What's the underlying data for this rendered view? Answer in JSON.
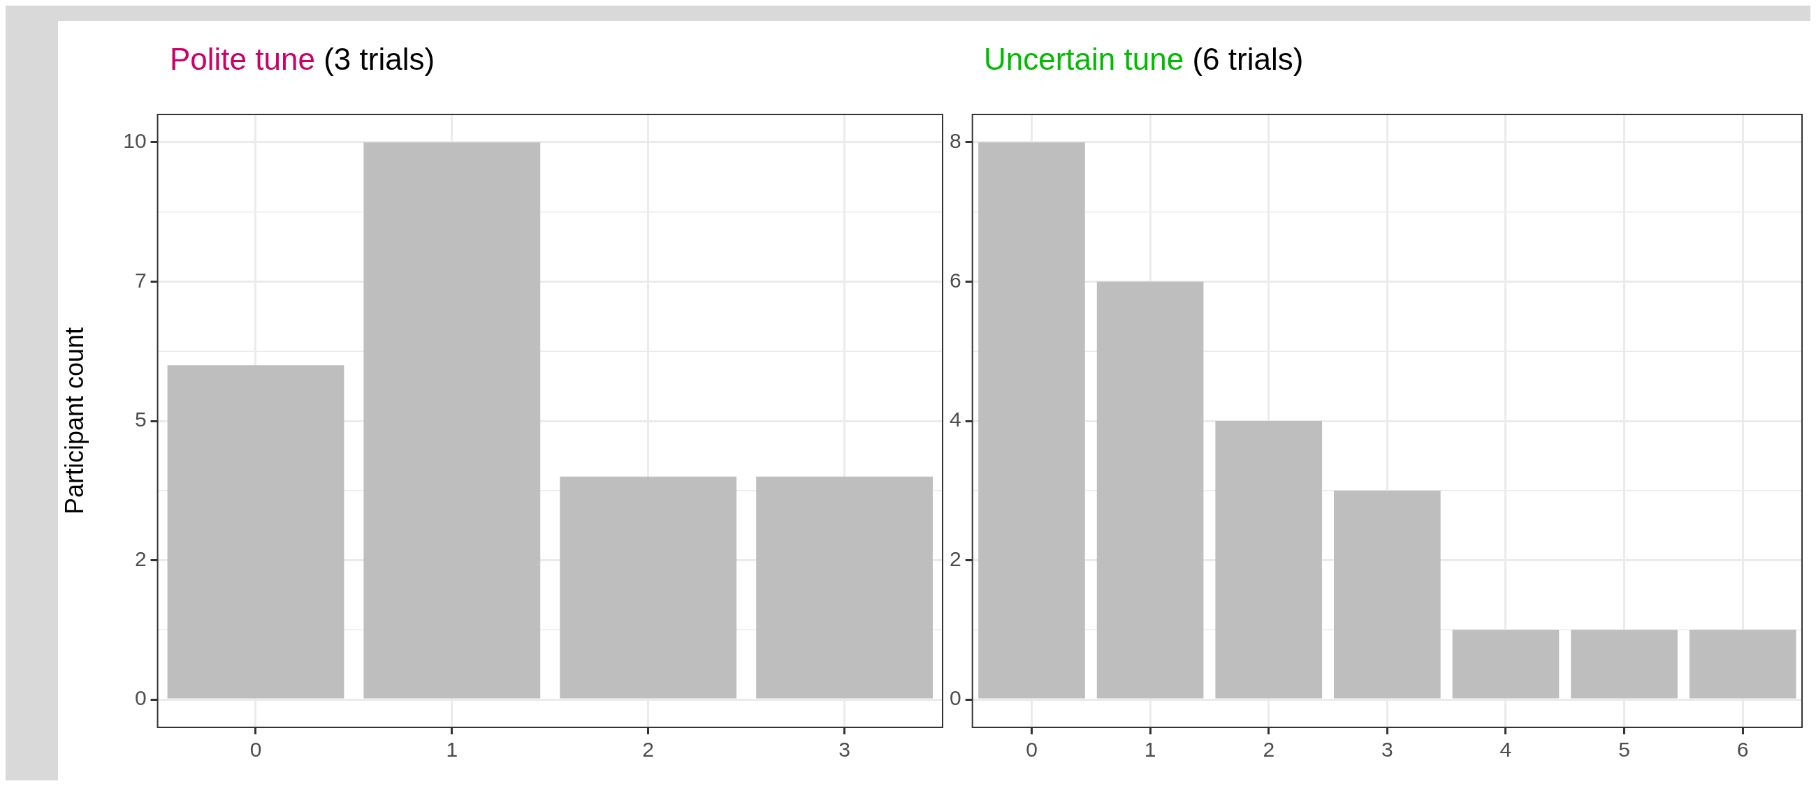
{
  "chart_data": [
    {
      "type": "bar",
      "title": "Polite tune",
      "subtitle": "(3 trials)",
      "ylabel": "Participant count",
      "categories": [
        "0",
        "1",
        "2",
        "3"
      ],
      "values": [
        6,
        10,
        4,
        4
      ],
      "color": "#bebebe",
      "ylim": [
        -0.5,
        10.5
      ],
      "yticks": [
        0,
        {
          "value": 2.5,
          "label": "2"
        },
        5,
        {
          "value": 7.5,
          "label": "7"
        },
        10
      ],
      "grid": true
    },
    {
      "type": "bar",
      "title": "Uncertain tune",
      "subtitle": "(6 trials)",
      "categories": [
        "0",
        "1",
        "2",
        "3",
        "4",
        "5",
        "6"
      ],
      "values": [
        8,
        6,
        4,
        3,
        1,
        1,
        1
      ],
      "color": "#bebebe",
      "ylim": [
        -0.4,
        8.4
      ],
      "yticks": [
        0,
        2,
        4,
        6,
        8
      ],
      "grid": true
    }
  ]
}
